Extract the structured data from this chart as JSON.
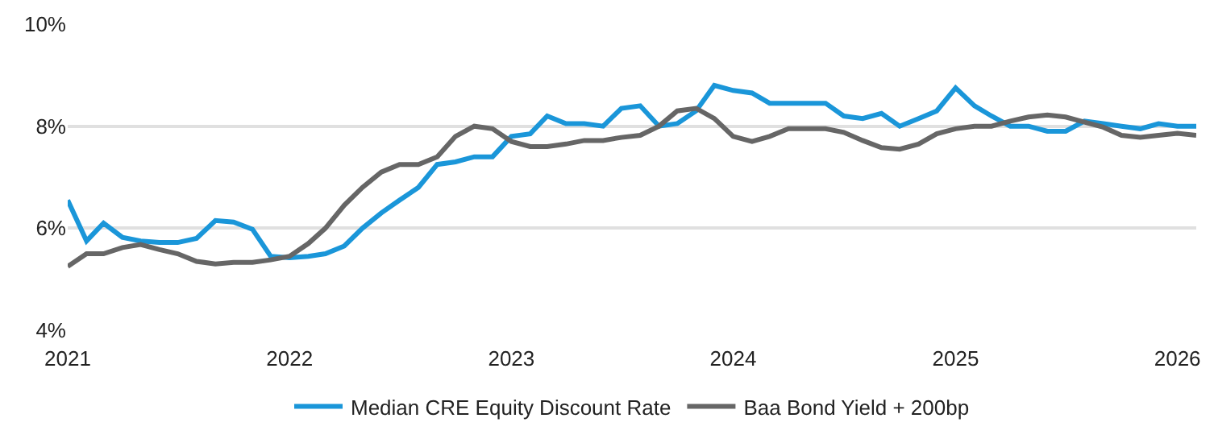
{
  "chart_data": {
    "type": "line",
    "x": [
      "2021-01",
      "2021-02",
      "2021-03",
      "2021-04",
      "2021-05",
      "2021-06",
      "2021-07",
      "2021-08",
      "2021-09",
      "2021-10",
      "2021-11",
      "2021-12",
      "2022-01",
      "2022-02",
      "2022-03",
      "2022-04",
      "2022-05",
      "2022-06",
      "2022-07",
      "2022-08",
      "2022-09",
      "2022-10",
      "2022-11",
      "2022-12",
      "2023-01",
      "2023-02",
      "2023-03",
      "2023-04",
      "2023-05",
      "2023-06",
      "2023-07",
      "2023-08",
      "2023-09",
      "2023-10",
      "2023-11",
      "2023-12",
      "2024-01",
      "2024-02",
      "2024-03",
      "2024-04",
      "2024-05",
      "2024-06",
      "2024-07",
      "2024-08",
      "2024-09",
      "2024-10",
      "2024-11",
      "2024-12",
      "2025-01",
      "2025-02",
      "2025-03",
      "2025-04",
      "2025-05",
      "2025-06",
      "2025-07",
      "2025-08",
      "2025-09",
      "2025-10",
      "2025-11",
      "2025-12",
      "2026-01",
      "2026-02"
    ],
    "series": [
      {
        "name": "Median CRE Equity Discount Rate",
        "color": "#1a96d9",
        "values": [
          6.55,
          5.75,
          6.1,
          5.82,
          5.75,
          5.72,
          5.72,
          5.8,
          6.15,
          6.12,
          5.98,
          5.45,
          5.42,
          5.45,
          5.5,
          5.65,
          6.0,
          6.3,
          6.55,
          6.8,
          7.25,
          7.3,
          7.4,
          7.4,
          7.8,
          7.85,
          8.2,
          8.05,
          8.05,
          8.0,
          8.35,
          8.4,
          8.0,
          8.05,
          8.3,
          8.8,
          8.7,
          8.65,
          8.45,
          8.45,
          8.45,
          8.45,
          8.2,
          8.15,
          8.25,
          8.0,
          8.15,
          8.3,
          8.75,
          8.4,
          8.2,
          8.0,
          8.0,
          7.9,
          7.9,
          8.1,
          8.05,
          8.0,
          7.95,
          8.05,
          8.0,
          8.0
        ]
      },
      {
        "name": "Baa Bond Yield + 200bp",
        "color": "#666666",
        "values": [
          5.25,
          5.5,
          5.5,
          5.62,
          5.68,
          5.58,
          5.5,
          5.35,
          5.3,
          5.33,
          5.33,
          5.38,
          5.45,
          5.7,
          6.0,
          6.45,
          6.8,
          7.1,
          7.25,
          7.25,
          7.4,
          7.8,
          8.0,
          7.95,
          7.7,
          7.6,
          7.6,
          7.65,
          7.72,
          7.72,
          7.78,
          7.82,
          8.0,
          8.3,
          8.35,
          8.15,
          7.8,
          7.7,
          7.8,
          7.95,
          7.95,
          7.95,
          7.88,
          7.72,
          7.58,
          7.55,
          7.65,
          7.85,
          7.95,
          8.0,
          8.0,
          8.1,
          8.18,
          8.22,
          8.18,
          8.08,
          7.98,
          7.82,
          7.78,
          7.82,
          7.86,
          7.82
        ]
      }
    ],
    "xlim": [
      "2021-01",
      "2026-02"
    ],
    "xticks": [
      "2021",
      "2022",
      "2023",
      "2024",
      "2025",
      "2026"
    ],
    "ylim": [
      4,
      10
    ],
    "yticks": [
      {
        "value": 4,
        "label": "4%"
      },
      {
        "value": 6,
        "label": "6%"
      },
      {
        "value": 8,
        "label": "8%"
      },
      {
        "value": 10,
        "label": "10%"
      }
    ],
    "grid": "y",
    "legend": "bottom",
    "marker": "none",
    "line_style": "solid"
  }
}
